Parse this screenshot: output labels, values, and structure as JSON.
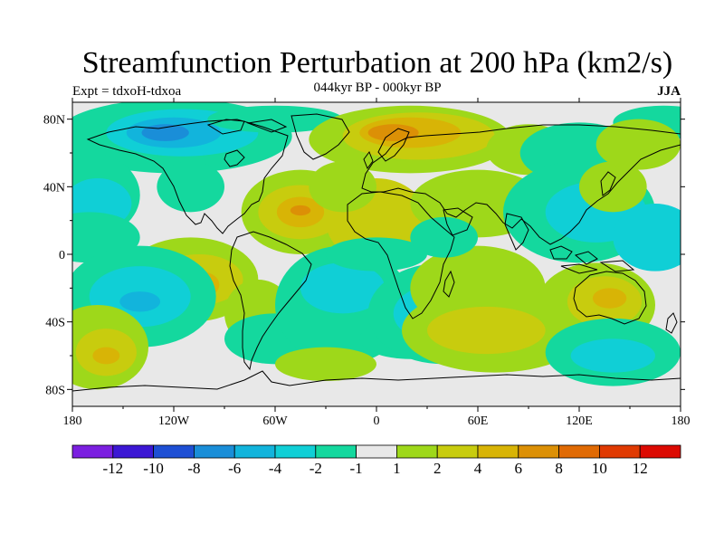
{
  "title": "Streamfunction Perturbation at 200 hPa (km2/s)",
  "subtitle": "044kyr BP - 000kyr BP",
  "left_label": "Expt = tdxoH-tdxoa",
  "right_label": "JJA",
  "map": {
    "x_ticks": [
      "180",
      "120W",
      "60W",
      "0",
      "60E",
      "120E",
      "180"
    ],
    "y_ticks": [
      "80N",
      "40N",
      "0",
      "40S",
      "80S"
    ],
    "x_tick_lon": [
      -180,
      -120,
      -60,
      0,
      60,
      120,
      180
    ],
    "y_tick_lat": [
      80,
      40,
      0,
      -40,
      -80
    ],
    "lon_range": [
      -180,
      180
    ],
    "lat_range": [
      -90,
      90
    ]
  },
  "colorbar": {
    "colors": [
      "#7b1fe0",
      "#3c17d4",
      "#1e4fd4",
      "#1a8ed8",
      "#12b4dc",
      "#10cfd6",
      "#14d89e",
      "#e8e8e8",
      "#9ed81a",
      "#c8cc0e",
      "#d8b406",
      "#dc9006",
      "#e06a04",
      "#e03a02",
      "#dc0a02"
    ],
    "labels": [
      "-12",
      "-10",
      "-8",
      "-6",
      "-4",
      "-2",
      "-1",
      "1",
      "2",
      "4",
      "6",
      "8",
      "10",
      "12"
    ]
  },
  "colors": {
    "background_field": "#e8e8e8",
    "coastline": "#000000"
  }
}
